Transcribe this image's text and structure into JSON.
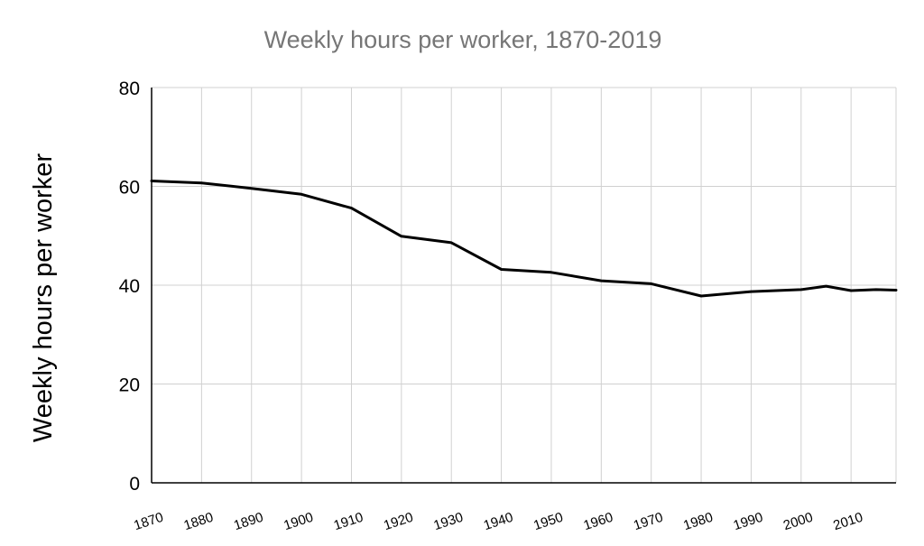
{
  "chart_data": {
    "type": "line",
    "title": "Weekly hours per worker, 1870-2019",
    "xlabel": "",
    "ylabel": "Weekly hours per worker",
    "xlim": [
      1870,
      2019
    ],
    "ylim": [
      0,
      80
    ],
    "y_ticks": [
      "0",
      "20",
      "40",
      "60",
      "80"
    ],
    "x_ticks": [
      "1870",
      "1880",
      "1890",
      "1900",
      "1910",
      "1920",
      "1930",
      "1940",
      "1950",
      "1960",
      "1970",
      "1980",
      "1990",
      "2000",
      "2010"
    ],
    "grid": true,
    "legend": "none",
    "series": [
      {
        "color": "#000000",
        "x": [
          1870,
          1880,
          1890,
          1900,
          1910,
          1920,
          1930,
          1940,
          1950,
          1960,
          1970,
          1980,
          1990,
          2000,
          2005,
          2010,
          2015,
          2019
        ],
        "y": [
          61.1,
          60.7,
          59.6,
          58.4,
          55.6,
          49.9,
          48.6,
          43.2,
          42.6,
          40.9,
          40.3,
          37.8,
          38.7,
          39.1,
          39.8,
          38.9,
          39.1,
          39.0
        ]
      }
    ]
  }
}
